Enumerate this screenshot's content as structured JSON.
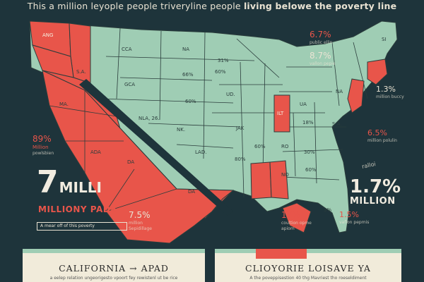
{
  "header": {
    "title_part1": "This a million leyople people triveryline people ",
    "title_part2": "living belowe the poverty line"
  },
  "colors": {
    "background": "#1e343b",
    "state_fill": "#9fcdb4",
    "highlight": "#e8554a",
    "border": "#2b3d3c",
    "cream": "#e9e3d3"
  },
  "map": {
    "state_labels": {
      "ang": "ANG",
      "sa": "S.A.",
      "ma": "MA.",
      "ada": "ADA",
      "da": "DA",
      "ca_lower": "DA",
      "cca": "CCA",
      "na_top": "NA",
      "pct31": "31%",
      "gca": "GCA",
      "pct66": "66%",
      "ud": "UD.",
      "pct50": "60%",
      "nla": "NLA, 26.",
      "nk": "NK.",
      "jak": "JAK",
      "lad": "LAD.",
      "pct80": "80%",
      "pct60": "60%",
      "ilt": "ILT",
      "ua": "UA",
      "pct18": "18%",
      "na_east": "NA",
      "sa_east": "S.A.",
      "ro": "RO",
      "no": "NO",
      "pct60b": "60%",
      "pct60c": "60%",
      "pct36": "30%",
      "pct3": "3%",
      "si": "SI"
    }
  },
  "stats": {
    "s1": {
      "value": "6.7%",
      "sub": "public ellin"
    },
    "s2": {
      "value": "8.7%",
      "sub": "vallon pepie"
    },
    "s3": {
      "value": "1.3%",
      "sub": "million buccy"
    },
    "s4": {
      "value": "6.5%",
      "sub": "million polulin"
    },
    "s5": {
      "value": "89%",
      "sub1": "Million",
      "sub2": "powlsbien"
    },
    "s6": {
      "value": "7.5%",
      "sub1": "million",
      "sub2": "Sepidillage"
    },
    "s7": {
      "value": "17%",
      "sub1": "coultion opme",
      "sub2": "apiom"
    },
    "s8": {
      "value": "1.5%",
      "sub": "vaflon pepmis"
    }
  },
  "big_left": {
    "number": "7",
    "word": "MILLI",
    "subtitle": "MILLIONY PADE",
    "note": "A mear off of this poverty"
  },
  "big_right": {
    "number": "1.7%",
    "word": "MILLION",
    "side_note": "ralloi"
  },
  "panels": {
    "left": {
      "title": "CALIFORNIA → APAD",
      "text": "a eelep relation ungeorigesto vpoort fey rewistenl ut be rice"
    },
    "right": {
      "title": "CLIOYORIE LOISAVE YA",
      "text": "A the poveppisestion 40 thg Mavriest tho roeseldiment"
    }
  }
}
